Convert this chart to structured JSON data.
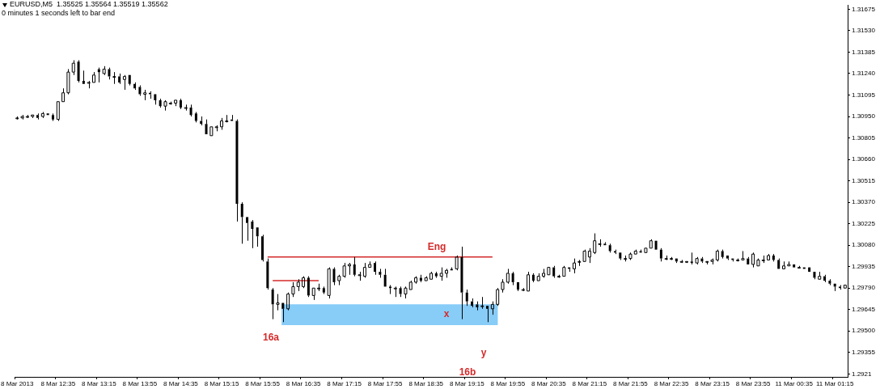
{
  "chart_data": {
    "type": "candlestick",
    "title": "EURUSD,M5  1.35525 1.35564 1.35519 1.35562",
    "subtitle": "0 minutes 1 seconds left to bar end",
    "color": "#000000",
    "categories": [
      "8 Mar 2013",
      null,
      null,
      null,
      null,
      null,
      null,
      null,
      "8 Mar 12:35",
      null,
      null,
      null,
      null,
      null,
      null,
      null,
      "8 Mar 13:15",
      null,
      null,
      null,
      null,
      null,
      null,
      null,
      "8 Mar 13:55",
      null,
      null,
      null,
      null,
      null,
      null,
      null,
      "8 Mar 14:35",
      null,
      null,
      null,
      null,
      null,
      null,
      null,
      "8 Mar 15:15",
      null,
      null,
      null,
      null,
      null,
      null,
      null,
      "8 Mar 15:55",
      null,
      null,
      null,
      null,
      null,
      null,
      null,
      "8 Mar 16:35",
      null,
      null,
      null,
      null,
      null,
      null,
      null,
      "8 Mar 17:15",
      null,
      null,
      null,
      null,
      null,
      null,
      null,
      "8 Mar 17:55",
      null,
      null,
      null,
      null,
      null,
      null,
      null,
      "8 Mar 18:35",
      null,
      null,
      null,
      null,
      null,
      null,
      null,
      "8 Mar 19:15",
      null,
      null,
      null,
      null,
      null,
      null,
      null,
      "8 Mar 19:55",
      null,
      null,
      null,
      null,
      null,
      null,
      null,
      "8 Mar 20:35",
      null,
      null,
      null,
      null,
      null,
      null,
      null,
      "8 Mar 21:15",
      null,
      null,
      null,
      null,
      null,
      null,
      null,
      "8 Mar 21:55",
      null,
      null,
      null,
      null,
      null,
      null,
      null,
      "8 Mar 22:35",
      null,
      null,
      null,
      null,
      null,
      null,
      null,
      "8 Mar 23:15",
      null,
      null,
      null,
      null,
      null,
      null,
      null,
      "8 Mar 23:55",
      null,
      null,
      null,
      null,
      null,
      null,
      null,
      "11 Mar 00:35",
      null,
      null,
      null,
      null,
      null,
      null,
      null,
      "11 Mar 01:15",
      null,
      null
    ],
    "ohlc": [
      [
        1.3094,
        1.3095,
        1.3093,
        1.3094
      ],
      [
        1.3094,
        1.3096,
        1.3093,
        1.3095
      ],
      [
        1.3095,
        1.3096,
        1.3094,
        1.3095
      ],
      [
        1.3095,
        1.3096,
        1.3094,
        1.3096
      ],
      [
        1.3096,
        1.3097,
        1.3093,
        1.3094
      ],
      [
        1.3095,
        1.3098,
        1.3094,
        1.3097
      ],
      [
        1.3097,
        1.3097,
        1.3096,
        1.3096
      ],
      [
        1.3096,
        1.3097,
        1.3092,
        1.3093
      ],
      [
        1.3093,
        1.3105,
        1.3092,
        1.3105
      ],
      [
        1.3105,
        1.3114,
        1.3105,
        1.3111
      ],
      [
        1.3111,
        1.3127,
        1.311,
        1.3125
      ],
      [
        1.3125,
        1.3133,
        1.3123,
        1.3131
      ],
      [
        1.3132,
        1.3133,
        1.3118,
        1.3119
      ],
      [
        1.3119,
        1.3126,
        1.3117,
        1.3117
      ],
      [
        1.3118,
        1.3119,
        1.3114,
        1.3118
      ],
      [
        1.3118,
        1.3125,
        1.3118,
        1.3123
      ],
      [
        1.3127,
        1.3128,
        1.3118,
        1.3125
      ],
      [
        1.3124,
        1.3129,
        1.3123,
        1.3127
      ],
      [
        1.3127,
        1.3128,
        1.312,
        1.3122
      ],
      [
        1.3122,
        1.3125,
        1.3117,
        1.3122
      ],
      [
        1.3122,
        1.3124,
        1.3117,
        1.3118
      ],
      [
        1.312,
        1.3123,
        1.3113,
        1.3122
      ],
      [
        1.3123,
        1.3123,
        1.3116,
        1.3117
      ],
      [
        1.3117,
        1.3118,
        1.3113,
        1.3114
      ],
      [
        1.3115,
        1.3116,
        1.3109,
        1.311
      ],
      [
        1.311,
        1.3113,
        1.3106,
        1.3111
      ],
      [
        1.3111,
        1.3112,
        1.3107,
        1.311
      ],
      [
        1.311,
        1.311,
        1.3103,
        1.3106
      ],
      [
        1.3106,
        1.3107,
        1.3101,
        1.3102
      ],
      [
        1.3102,
        1.3106,
        1.3099,
        1.3105
      ],
      [
        1.3104,
        1.3105,
        1.3103,
        1.3104
      ],
      [
        1.3104,
        1.3106,
        1.3102,
        1.3106
      ],
      [
        1.3106,
        1.3107,
        1.31,
        1.3101
      ],
      [
        1.3101,
        1.3103,
        1.3099,
        1.3101
      ],
      [
        1.3101,
        1.3103,
        1.3095,
        1.3096
      ],
      [
        1.3097,
        1.3098,
        1.3091,
        1.3092
      ],
      [
        1.3092,
        1.3095,
        1.3089,
        1.309
      ],
      [
        1.309,
        1.3093,
        1.3083,
        1.3083
      ],
      [
        1.3082,
        1.3088,
        1.3082,
        1.3088
      ],
      [
        1.3088,
        1.3089,
        1.3085,
        1.3088
      ],
      [
        1.3088,
        1.3094,
        1.3086,
        1.3092
      ],
      [
        1.3092,
        1.3096,
        1.3091,
        1.3092
      ],
      [
        1.3093,
        1.3096,
        1.3092,
        1.3092
      ],
      [
        1.3092,
        1.3093,
        1.3024,
        1.3036
      ],
      [
        1.3036,
        1.3037,
        1.3009,
        1.3027
      ],
      [
        1.3027,
        1.3027,
        1.3011,
        1.3023
      ],
      [
        1.3024,
        1.3025,
        1.3006,
        1.3019
      ],
      [
        1.302,
        1.302,
        1.3007,
        1.3014
      ],
      [
        1.3014,
        1.3015,
        1.2997,
        1.2998
      ],
      [
        1.2997,
        1.2999,
        1.2978,
        1.2979
      ],
      [
        1.2978,
        1.2979,
        1.2958,
        1.2968
      ],
      [
        1.2968,
        1.2975,
        1.2964,
        1.2969
      ],
      [
        1.2969,
        1.2969,
        1.2956,
        1.2965
      ],
      [
        1.2965,
        1.2976,
        1.2964,
        1.2975
      ],
      [
        1.2975,
        1.2983,
        1.2973,
        1.298
      ],
      [
        1.298,
        1.2985,
        1.2977,
        1.2983
      ],
      [
        1.298,
        1.2987,
        1.2979,
        1.2986
      ],
      [
        1.2986,
        1.2987,
        1.2973,
        1.2974
      ],
      [
        1.2974,
        1.2979,
        1.2971,
        1.2979
      ],
      [
        1.2979,
        1.2982,
        1.2977,
        1.2979
      ],
      [
        1.2979,
        1.298,
        1.2975,
        1.2976
      ],
      [
        1.2974,
        1.2993,
        1.2972,
        1.2992
      ],
      [
        1.2992,
        1.2993,
        1.2981,
        1.2983
      ],
      [
        1.2984,
        1.2988,
        1.2981,
        1.2987
      ],
      [
        1.2987,
        1.2996,
        1.2986,
        1.2994
      ],
      [
        1.2994,
        1.2996,
        1.2988,
        1.2995
      ],
      [
        1.2995,
        1.3,
        1.2987,
        1.2988
      ],
      [
        1.2988,
        1.299,
        1.2984,
        1.2988
      ],
      [
        1.2987,
        1.2996,
        1.2986,
        1.2993
      ],
      [
        1.2993,
        1.2997,
        1.2993,
        1.2995
      ],
      [
        1.2996,
        1.2997,
        1.2988,
        1.299
      ],
      [
        1.299,
        1.2992,
        1.2986,
        1.2988
      ],
      [
        1.2988,
        1.2992,
        1.298,
        1.298
      ],
      [
        1.298,
        1.2981,
        1.2975,
        1.2979
      ],
      [
        1.2979,
        1.298,
        1.2973,
        1.2979
      ],
      [
        1.2979,
        1.298,
        1.2973,
        1.2975
      ],
      [
        1.2975,
        1.298,
        1.2972,
        1.2979
      ],
      [
        1.2978,
        1.2984,
        1.2978,
        1.2983
      ],
      [
        1.2983,
        1.2987,
        1.2982,
        1.2986
      ],
      [
        1.2986,
        1.2988,
        1.2983,
        1.2984
      ],
      [
        1.2984,
        1.2987,
        1.2984,
        1.2986
      ],
      [
        1.2985,
        1.299,
        1.2985,
        1.2989
      ],
      [
        1.2989,
        1.299,
        1.2986,
        1.2987
      ],
      [
        1.2987,
        1.2993,
        1.2984,
        1.2989
      ],
      [
        1.2989,
        1.2992,
        1.2986,
        1.2991
      ],
      [
        1.2992,
        1.2993,
        1.2991,
        1.2991
      ],
      [
        1.2992,
        1.3001,
        1.2991,
        1.3
      ],
      [
        1.3,
        1.3007,
        1.2958,
        1.2976
      ],
      [
        1.2976,
        1.2978,
        1.2967,
        1.297
      ],
      [
        1.297,
        1.2972,
        1.2966,
        1.2967
      ],
      [
        1.2968,
        1.297,
        1.2964,
        1.2966
      ],
      [
        1.2967,
        1.2973,
        1.2965,
        1.2967
      ],
      [
        1.2967,
        1.2967,
        1.2956,
        1.2965
      ],
      [
        1.2965,
        1.297,
        1.2961,
        1.2968
      ],
      [
        1.2968,
        1.2979,
        1.2967,
        1.2978
      ],
      [
        1.2978,
        1.2985,
        1.2976,
        1.2983
      ],
      [
        1.2983,
        1.2992,
        1.2982,
        1.2989
      ],
      [
        1.2989,
        1.299,
        1.2981,
        1.2983
      ],
      [
        1.2983,
        1.2983,
        1.2977,
        1.2978
      ],
      [
        1.2978,
        1.2979,
        1.2977,
        1.2978
      ],
      [
        1.2977,
        1.299,
        1.2977,
        1.2988
      ],
      [
        1.2988,
        1.2989,
        1.2983,
        1.2984
      ],
      [
        1.2984,
        1.2989,
        1.2984,
        1.2987
      ],
      [
        1.2987,
        1.2992,
        1.2986,
        1.2989
      ],
      [
        1.2988,
        1.2993,
        1.2988,
        1.2993
      ],
      [
        1.2993,
        1.2994,
        1.2986,
        1.2987
      ],
      [
        1.2987,
        1.2988,
        1.2986,
        1.2987
      ],
      [
        1.2987,
        1.2994,
        1.2987,
        1.2993
      ],
      [
        1.2993,
        1.2993,
        1.299,
        1.2992
      ],
      [
        1.2992,
        1.2999,
        1.2989,
        1.2996
      ],
      [
        1.2997,
        1.2998,
        1.2994,
        1.2997
      ],
      [
        1.2997,
        1.3005,
        1.2997,
        1.3004
      ],
      [
        1.3,
        1.3006,
        1.2996,
        1.3004
      ],
      [
        1.3003,
        1.3016,
        1.3002,
        1.3011
      ],
      [
        1.3009,
        1.3012,
        1.3007,
        1.3009
      ],
      [
        1.3009,
        1.301,
        1.3008,
        1.3008
      ],
      [
        1.3008,
        1.3009,
        1.3003,
        1.3004
      ],
      [
        1.3004,
        1.3005,
        1.3002,
        1.3003
      ],
      [
        1.3003,
        1.3003,
        1.2998,
        1.2999
      ],
      [
        1.2999,
        1.3001,
        1.2997,
        1.2999
      ],
      [
        1.2999,
        1.3003,
        1.2998,
        1.3002
      ],
      [
        1.3002,
        1.3005,
        1.3002,
        1.3004
      ],
      [
        1.3004,
        1.3005,
        1.3003,
        1.3003
      ],
      [
        1.3003,
        1.3006,
        1.3003,
        1.3006
      ],
      [
        1.3006,
        1.3012,
        1.3006,
        1.3011
      ],
      [
        1.3011,
        1.3011,
        1.3005,
        1.3005
      ],
      [
        1.3005,
        1.3006,
        1.2997,
        1.2999
      ],
      [
        1.2999,
        1.3001,
        1.2998,
        1.2999
      ],
      [
        1.2999,
        1.3,
        1.2998,
        1.2999
      ],
      [
        1.2999,
        1.2999,
        1.2996,
        1.2997
      ],
      [
        1.2997,
        1.2998,
        1.2996,
        1.2997
      ],
      [
        1.2997,
        1.2997,
        1.2996,
        1.2997
      ],
      [
        1.2997,
        1.3003,
        1.2995,
        1.2996
      ],
      [
        1.2996,
        1.3,
        1.2995,
        1.2999
      ],
      [
        1.2999,
        1.3,
        1.2996,
        1.2997
      ],
      [
        1.2997,
        1.2997,
        1.2995,
        1.2997
      ],
      [
        1.2997,
        1.2999,
        1.2995,
        1.2998
      ],
      [
        1.2998,
        1.3005,
        1.2997,
        1.3004
      ],
      [
        1.3004,
        1.3005,
        1.2999,
        1.3
      ],
      [
        1.3001,
        1.3001,
        1.2998,
        1.2999
      ],
      [
        1.2999,
        1.2999,
        1.2997,
        1.2998
      ],
      [
        1.2998,
        1.2999,
        1.2997,
        1.2998
      ],
      [
        1.2998,
        1.3004,
        1.2998,
        1.2999
      ],
      [
        1.2999,
        1.3,
        1.2995,
        1.2995
      ],
      [
        1.2995,
        1.3003,
        1.2993,
        1.3002
      ],
      [
        1.2994,
        1.2999,
        1.2994,
        1.2998
      ],
      [
        1.2998,
        1.3001,
        1.2996,
        1.2998
      ],
      [
        1.2998,
        1.3002,
        1.2998,
        1.3001
      ],
      [
        1.3001,
        1.3002,
        1.2997,
        1.2998
      ],
      [
        1.2998,
        1.2999,
        1.2992,
        1.2992
      ],
      [
        1.2992,
        1.2997,
        1.2992,
        1.2994
      ],
      [
        1.2994,
        1.2997,
        1.2994,
        1.2995
      ],
      [
        1.2995,
        1.2995,
        1.2993,
        1.2993
      ],
      [
        1.2993,
        1.2994,
        1.2993,
        1.2993
      ],
      [
        1.2993,
        1.2993,
        1.2992,
        1.2992
      ],
      [
        1.2993,
        1.2993,
        1.299,
        1.299
      ],
      [
        1.299,
        1.299,
        1.2985,
        1.2986
      ],
      [
        1.2985,
        1.299,
        1.2985,
        1.2987
      ],
      [
        1.2987,
        1.2988,
        1.2983,
        1.2984
      ],
      [
        1.2984,
        1.2985,
        1.2981,
        1.2982
      ],
      [
        1.2982,
        1.2982,
        1.2977,
        1.298
      ],
      [
        1.298,
        1.2981,
        1.2978,
        1.2979
      ],
      [
        1.2979,
        1.2981,
        1.2979,
        1.2981
      ]
    ],
    "series": [
      {
        "type": "line",
        "color": "#d42a2a",
        "values": [
          null,
          null,
          null,
          null,
          null,
          null,
          null,
          null,
          null,
          null,
          null,
          null,
          null,
          null,
          null,
          null,
          null,
          null,
          null,
          null,
          null,
          null,
          null,
          null,
          null,
          null,
          null,
          null,
          null,
          null,
          null,
          null,
          null,
          null,
          null,
          null,
          null,
          null,
          null,
          null,
          null,
          null,
          null,
          null,
          null,
          null,
          null,
          null,
          null,
          1.3,
          1.3,
          1.3,
          1.3,
          1.3,
          1.3,
          1.3,
          1.3,
          1.3,
          1.3,
          1.3,
          1.3,
          1.3,
          1.3,
          1.3,
          1.3,
          1.3,
          1.3,
          1.3,
          1.3,
          1.3,
          1.3,
          1.3,
          1.3,
          1.3,
          1.3,
          1.3,
          1.3,
          1.3,
          1.3,
          1.3,
          1.3,
          1.3,
          1.3,
          1.3,
          1.3,
          1.3,
          1.3,
          1.3,
          1.3,
          1.3,
          1.3,
          1.3,
          1.3,
          1.3,
          null,
          null,
          null,
          null,
          null,
          null,
          null,
          null,
          null,
          null,
          null,
          null,
          null,
          null,
          null,
          null,
          null,
          null,
          null,
          null,
          null,
          null,
          null,
          null,
          null,
          null,
          null,
          null,
          null,
          null,
          null,
          null,
          null,
          null,
          null,
          null,
          null,
          null,
          null,
          null,
          null,
          null,
          null,
          null,
          null,
          null,
          null,
          null,
          null,
          null,
          null,
          null,
          null,
          null,
          null,
          null,
          null,
          null,
          null,
          null,
          null,
          null,
          null,
          null,
          null,
          null,
          null,
          null,
          null
        ]
      },
      {
        "type": "line",
        "color": "#d42a2a",
        "values": [
          null,
          null,
          null,
          null,
          null,
          null,
          null,
          null,
          null,
          null,
          null,
          null,
          null,
          null,
          null,
          null,
          null,
          null,
          null,
          null,
          null,
          null,
          null,
          null,
          null,
          null,
          null,
          null,
          null,
          null,
          null,
          null,
          null,
          null,
          null,
          null,
          null,
          null,
          null,
          null,
          null,
          null,
          null,
          null,
          null,
          null,
          null,
          null,
          null,
          null,
          1.2984,
          1.2984,
          1.2984,
          1.2984,
          1.2984,
          1.2984,
          1.2984,
          1.2984,
          1.2984,
          1.2984,
          null,
          null,
          null,
          null,
          null,
          null,
          null,
          null,
          null,
          null,
          null,
          null,
          null,
          null,
          null,
          null,
          null,
          null,
          null,
          null,
          null,
          null,
          null,
          null,
          null,
          null,
          null,
          null,
          null,
          null,
          null,
          null,
          null,
          null,
          null,
          null,
          null,
          null,
          null,
          null,
          null,
          null,
          null,
          null,
          null,
          null,
          null,
          null,
          null,
          null,
          null,
          null,
          null,
          null,
          null,
          null,
          null,
          null,
          null,
          null,
          null,
          null,
          null,
          null,
          null,
          null,
          null,
          null,
          null,
          null,
          null,
          null,
          null,
          null,
          null,
          null,
          null,
          null,
          null,
          null,
          null,
          null,
          null,
          null,
          null,
          null,
          null,
          null,
          null,
          null,
          null,
          null,
          null,
          null,
          null,
          null,
          null,
          null,
          null,
          null,
          null,
          null,
          null
        ]
      }
    ],
    "bands": [
      {
        "axis": "y",
        "from": 1.2954,
        "to": 1.2968,
        "color": "#88ccf8"
      }
    ],
    "ylim": [
      1.2919,
      1.317
    ],
    "yticks": [
      1.2921,
      1.29355,
      {
        "value": 1.295,
        "label": "1.29500"
      },
      1.29645,
      {
        "value": 1.2979,
        "label": "1.29790"
      },
      1.29935,
      {
        "value": 1.3008,
        "label": "1.30080"
      },
      1.30225,
      {
        "value": 1.3037,
        "label": "1.30370"
      },
      1.30515,
      {
        "value": 1.3066,
        "label": "1.30660"
      },
      1.30805,
      {
        "value": 1.3095,
        "label": "1.30950"
      },
      1.31095,
      {
        "value": 1.3124,
        "label": "1.31240"
      },
      1.31385,
      {
        "value": 1.3153,
        "label": "1.31530"
      },
      1.31675
    ],
    "annotations": [
      "Eng",
      "16a",
      "16b",
      "x",
      "y"
    ]
  }
}
